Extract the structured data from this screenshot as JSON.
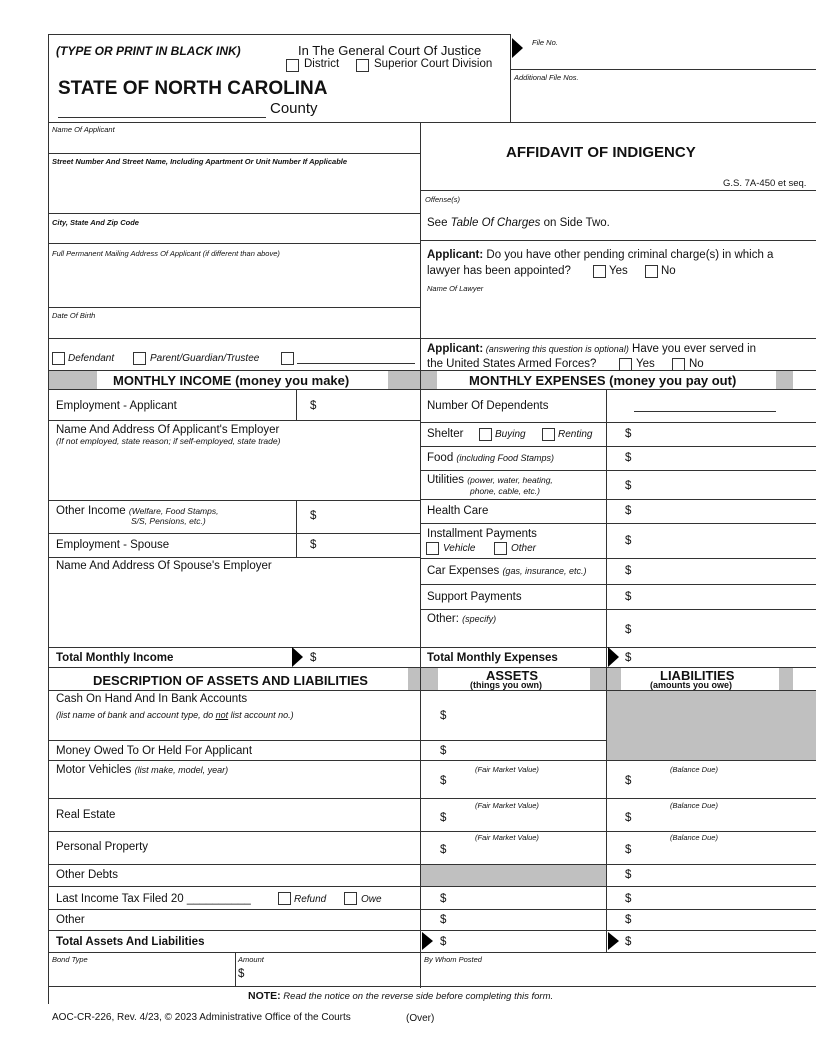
{
  "header": {
    "instruction": "(TYPE OR PRINT IN BLACK INK)",
    "court": "In The General Court Of Justice",
    "district": "District",
    "superior": "Superior Court Division",
    "state": "STATE OF NORTH CAROLINA",
    "county": "County",
    "file_no": "File No.",
    "additional_file_nos": "Additional File Nos."
  },
  "title": "AFFIDAVIT OF INDIGENCY",
  "statute": "G.S. 7A-450 et seq.",
  "applicant_fields": {
    "name": "Name Of Applicant",
    "street": "Street Number And Street Name, Including Apartment Or Unit Number If Applicable",
    "city": "City, State And Zip Code",
    "mailing": "Full Permanent Mailing Address Of Applicant (if different than above)",
    "dob": "Date Of Birth",
    "defendant": "Defendant",
    "parent": "Parent/Guardian/Trustee"
  },
  "offense": {
    "label": "Offense(s)",
    "see": "See ",
    "table": "Table Of Charges",
    "side": " on Side Two."
  },
  "q1": {
    "lead": "Applicant:",
    "text1": " Do you have other pending criminal charge(s) in which a",
    "text2": "lawyer has been appointed?",
    "yes": "Yes",
    "no": "No",
    "lawyer": "Name Of Lawyer"
  },
  "q2": {
    "lead": "Applicant:",
    "opt": " (answering this question is optional)",
    "text1": " Have you ever served in",
    "text2": "the United States Armed Forces?",
    "yes": "Yes",
    "no": "No"
  },
  "income": {
    "title": "MONTHLY INCOME (money you make)",
    "employment_applicant": "Employment - Applicant",
    "employer_name": "Name And Address Of Applicant's Employer",
    "employer_note": "(If not employed, state reason; if self-employed, state trade)",
    "other_income": "Other Income",
    "other_note1": "(Welfare, Food Stamps,",
    "other_note2": "S/S, Pensions, etc.)",
    "employment_spouse": "Employment - Spouse",
    "spouse_employer": "Name And Address Of Spouse's Employer",
    "total": "Total Monthly Income",
    "dollar": "$"
  },
  "expenses": {
    "title": "MONTHLY EXPENSES (money you pay out)",
    "dependents": "Number Of Dependents",
    "shelter": "Shelter",
    "buying": "Buying",
    "renting": "Renting",
    "food": "Food",
    "food_note": "(including Food Stamps)",
    "utilities": "Utilities",
    "util_note1": "(power, water, heating,",
    "util_note2": "phone, cable, etc.)",
    "health": "Health Care",
    "installment": "Installment Payments",
    "vehicle": "Vehicle",
    "other_opt": "Other",
    "car": "Car Expenses",
    "car_note": "(gas, insurance, etc.)",
    "support": "Support Payments",
    "other": "Other:",
    "other_note": "(specify)",
    "total": "Total Monthly Expenses"
  },
  "assets": {
    "title": "DESCRIPTION OF ASSETS AND LIABILITIES",
    "assets_h": "ASSETS",
    "assets_sub": "(things you own)",
    "liab_h": "LIABILITIES",
    "liab_sub": "(amounts you owe)",
    "cash": "Cash On Hand And In Bank Accounts",
    "cash_note_a": "(list name of bank and account type, do ",
    "cash_note_not": "not",
    "cash_note_b": " list account no.)",
    "owed": "Money Owed To Or Held For Applicant",
    "motor": "Motor Vehicles",
    "motor_note": "(list make, model, year)",
    "real": "Real Estate",
    "personal": "Personal Property",
    "debts": "Other Debts",
    "tax": "Last Income Tax Filed 20 __________",
    "refund": "Refund",
    "owe": "Owe",
    "other": "Other",
    "total": "Total Assets And Liabilities",
    "fmv": "(Fair Market Value)",
    "balance": "(Balance Due)"
  },
  "bond": {
    "type": "Bond Type",
    "amount": "Amount",
    "posted": "By Whom Posted"
  },
  "note": {
    "lead": "NOTE:",
    "text": " Read the notice on the reverse side before completing this form."
  },
  "footer": {
    "form": "AOC-CR-226, Rev. 4/23, © 2023 Administrative Office of the Courts",
    "over": "(Over)"
  }
}
